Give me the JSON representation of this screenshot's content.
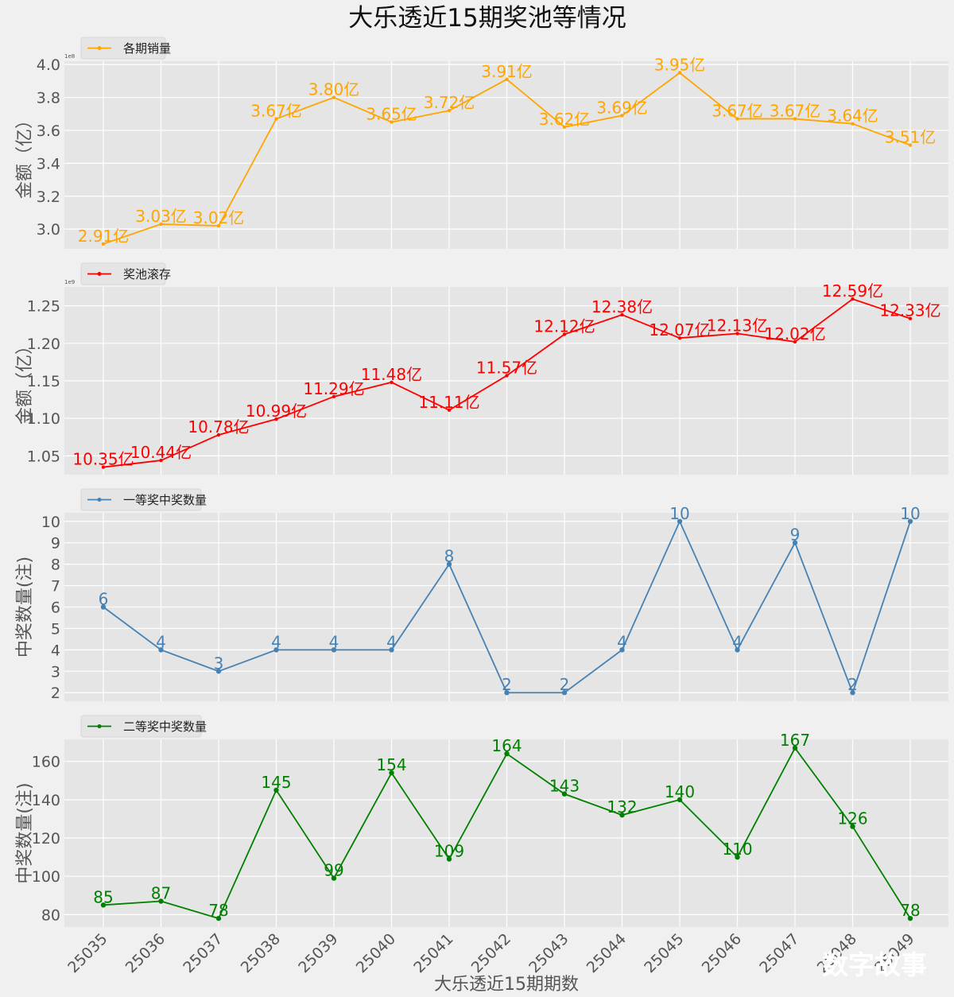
{
  "title": "大乐透近15期奖池等情况",
  "xlabel": "大乐透近15期期数",
  "watermark": "数字故事",
  "chart_data": [
    {
      "type": "line",
      "legend": "各期销量",
      "color": "#ffa500",
      "ylabel": "金额（亿）",
      "offset_text": "1e8",
      "ylim": [
        288000000,
        402000000
      ],
      "yticks": [
        300000000,
        320000000,
        340000000,
        360000000,
        380000000,
        400000000
      ],
      "ytick_labels": [
        "3.0",
        "3.2",
        "3.4",
        "3.6",
        "3.8",
        "4.0"
      ],
      "categories": [
        "25035",
        "25036",
        "25037",
        "25038",
        "25039",
        "25040",
        "25041",
        "25042",
        "25043",
        "25044",
        "25045",
        "25046",
        "25047",
        "25048",
        "25049"
      ],
      "values": [
        291000000,
        303000000,
        302000000,
        367000000,
        380000000,
        365000000,
        372000000,
        391000000,
        362000000,
        369000000,
        395000000,
        367000000,
        367000000,
        364000000,
        351000000
      ],
      "labels": [
        "2.91亿",
        "3.03亿",
        "3.02亿",
        "3.67亿",
        "3.80亿",
        "3.65亿",
        "3.72亿",
        "3.91亿",
        "3.62亿",
        "3.69亿",
        "3.95亿",
        "3.67亿",
        "3.67亿",
        "3.64亿",
        "3.51亿"
      ]
    },
    {
      "type": "line",
      "legend": "奖池滚存",
      "color": "#ff0000",
      "ylabel": "金额（亿）",
      "offset_text": "1e9",
      "ylim": [
        1025000000,
        1275000000
      ],
      "yticks": [
        1050000000,
        1100000000,
        1150000000,
        1200000000,
        1250000000
      ],
      "ytick_labels": [
        "1.05",
        "1.10",
        "1.15",
        "1.20",
        "1.25"
      ],
      "categories": [
        "25035",
        "25036",
        "25037",
        "25038",
        "25039",
        "25040",
        "25041",
        "25042",
        "25043",
        "25044",
        "25045",
        "25046",
        "25047",
        "25048",
        "25049"
      ],
      "values": [
        1035000000,
        1044000000,
        1078000000,
        1099000000,
        1129000000,
        1148000000,
        1111000000,
        1157000000,
        1212000000,
        1238000000,
        1207000000,
        1213000000,
        1202000000,
        1259000000,
        1233000000
      ],
      "labels": [
        "10.35亿",
        "10.44亿",
        "10.78亿",
        "10.99亿",
        "11.29亿",
        "11.48亿",
        "11.11亿",
        "11.57亿",
        "12.12亿",
        "12.38亿",
        "12.07亿",
        "12.13亿",
        "12.02亿",
        "12.59亿",
        "12.33亿"
      ]
    },
    {
      "type": "line",
      "legend": "一等奖中奖数量",
      "color": "#4682b4",
      "ylabel": "中奖数量(注)",
      "ylim": [
        1.6,
        10.4
      ],
      "yticks": [
        2,
        3,
        4,
        5,
        6,
        7,
        8,
        9,
        10
      ],
      "ytick_labels": [
        "2",
        "3",
        "4",
        "5",
        "6",
        "7",
        "8",
        "9",
        "10"
      ],
      "categories": [
        "25035",
        "25036",
        "25037",
        "25038",
        "25039",
        "25040",
        "25041",
        "25042",
        "25043",
        "25044",
        "25045",
        "25046",
        "25047",
        "25048",
        "25049"
      ],
      "values": [
        6,
        4,
        3,
        4,
        4,
        4,
        8,
        2,
        2,
        4,
        10,
        4,
        9,
        2,
        10
      ],
      "labels": [
        "6",
        "4",
        "3",
        "4",
        "4",
        "4",
        "8",
        "2",
        "2",
        "4",
        "10",
        "4",
        "9",
        "2",
        "10"
      ]
    },
    {
      "type": "line",
      "legend": "二等奖中奖数量",
      "color": "#008000",
      "ylabel": "中奖数量(注)",
      "ylim": [
        73.5,
        171.5
      ],
      "yticks": [
        80,
        100,
        120,
        140,
        160
      ],
      "ytick_labels": [
        "80",
        "100",
        "120",
        "140",
        "160"
      ],
      "categories": [
        "25035",
        "25036",
        "25037",
        "25038",
        "25039",
        "25040",
        "25041",
        "25042",
        "25043",
        "25044",
        "25045",
        "25046",
        "25047",
        "25048",
        "25049"
      ],
      "values": [
        85,
        87,
        78,
        145,
        99,
        154,
        109,
        164,
        143,
        132,
        140,
        110,
        167,
        126,
        78
      ],
      "labels": [
        "85",
        "87",
        "78",
        "145",
        "99",
        "154",
        "109",
        "164",
        "143",
        "132",
        "140",
        "110",
        "167",
        "126",
        "78"
      ]
    }
  ]
}
